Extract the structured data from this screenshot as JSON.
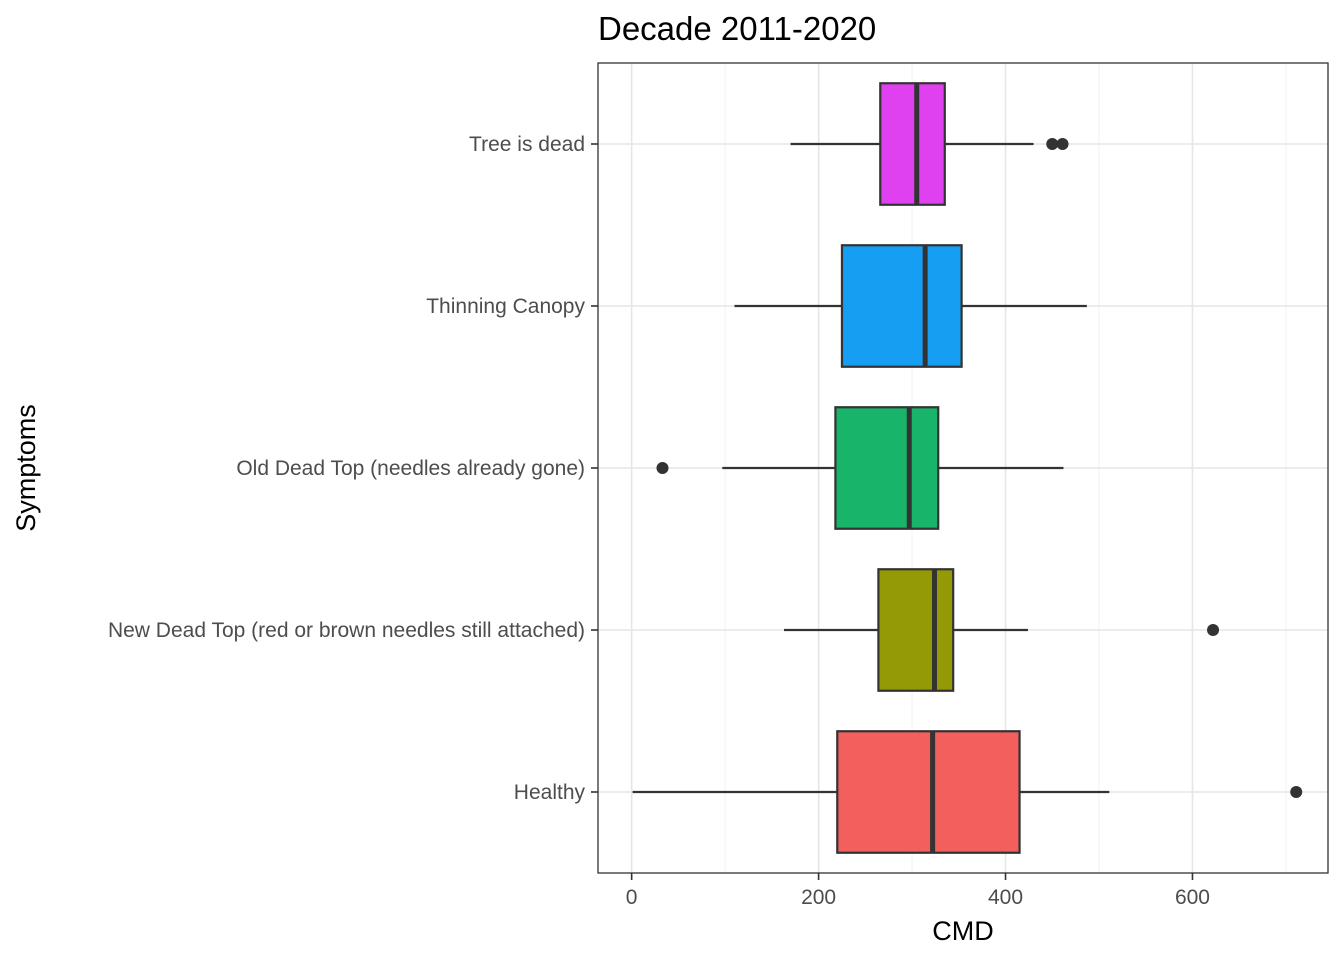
{
  "chart_data": {
    "type": "boxplot",
    "orientation": "horizontal",
    "title": "Decade 2011-2020",
    "xlabel": "CMD",
    "ylabel": "Symptoms",
    "xlim": [
      -36,
      745
    ],
    "x_ticks": [
      0,
      200,
      400,
      600
    ],
    "x_tick_labels": [
      "0",
      "200",
      "400",
      "600"
    ],
    "grid": true,
    "legend": "none",
    "categories": [
      "Tree is dead",
      "Thinning Canopy",
      "Old Dead Top (needles already gone)",
      "New Dead Top (red or brown needles still attached)",
      "Healthy"
    ],
    "boxes": [
      {
        "category": "Tree is dead",
        "whisker_low": 170,
        "q1": 266,
        "median": 305,
        "q3": 335,
        "whisker_high": 430,
        "outliers": [
          450,
          461
        ],
        "color": "#E041F0"
      },
      {
        "category": "Thinning Canopy",
        "whisker_low": 110,
        "q1": 225,
        "median": 314,
        "q3": 353,
        "whisker_high": 487,
        "outliers": [],
        "color": "#169EF2"
      },
      {
        "category": "Old Dead Top (needles already gone)",
        "whisker_low": 97,
        "q1": 218,
        "median": 297,
        "q3": 328,
        "whisker_high": 462,
        "outliers": [
          33
        ],
        "color": "#18B46A"
      },
      {
        "category": "New Dead Top (red or brown needles still attached)",
        "whisker_low": 163,
        "q1": 264,
        "median": 324,
        "q3": 344,
        "whisker_high": 424,
        "outliers": [
          622
        ],
        "color": "#949A06"
      },
      {
        "category": "Healthy",
        "whisker_low": 1,
        "q1": 220,
        "median": 322,
        "q3": 415,
        "whisker_high": 511,
        "outliers": [
          711
        ],
        "color": "#F25F5C"
      }
    ]
  }
}
